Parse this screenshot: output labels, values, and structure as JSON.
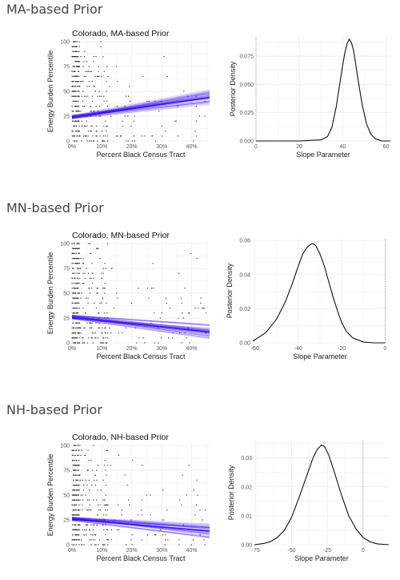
{
  "sections": [
    {
      "heading": "MA-based Prior"
    },
    {
      "heading": "MN-based Prior"
    },
    {
      "heading": "NH-based Prior"
    }
  ],
  "colors": {
    "band": "#3a10f0",
    "points": "#333333",
    "density": "#111111",
    "zero_line": "#888888"
  },
  "chart_data": [
    {
      "type": "scatter",
      "title": "Colorado, MA-based Prior",
      "xlabel": "Percent Black Census Tract",
      "ylabel": "Energy Burden Percentile",
      "xlim": [
        0,
        0.46
      ],
      "ylim": [
        0,
        100
      ],
      "xticks": [
        0,
        0.1,
        0.2,
        0.3,
        0.4
      ],
      "xtick_labels": [
        "0%",
        "10%",
        "20%",
        "30%",
        "40%"
      ],
      "yticks": [
        0,
        25,
        50,
        75,
        100
      ],
      "ytick_labels": [
        "0",
        "25",
        "50",
        "75",
        "100"
      ],
      "fit_line": {
        "intercept": 24,
        "slope": 43
      }
    },
    {
      "type": "line",
      "xlabel": "Slope Parameter",
      "ylabel": "Posterior Density",
      "xlim": [
        0,
        62
      ],
      "ylim": [
        0,
        0.092
      ],
      "xticks": [
        0,
        20,
        40,
        60
      ],
      "xtick_labels": [
        "0",
        "20",
        "40",
        "60"
      ],
      "yticks": [
        0,
        0.025,
        0.05,
        0.075
      ],
      "ytick_labels": [
        "0.000",
        "0.025",
        "0.050",
        "0.075"
      ],
      "zero_line": 0,
      "x": [
        0,
        20,
        30,
        33,
        35,
        37,
        39,
        40,
        41,
        42,
        43,
        44,
        45,
        46,
        47,
        49,
        51,
        53,
        55,
        58,
        62
      ],
      "y": [
        0,
        0,
        0.001,
        0.004,
        0.012,
        0.03,
        0.055,
        0.067,
        0.078,
        0.086,
        0.09,
        0.087,
        0.08,
        0.068,
        0.055,
        0.032,
        0.015,
        0.006,
        0.002,
        0,
        0
      ]
    },
    {
      "type": "scatter",
      "title": "Colorado, MN-based Prior",
      "xlabel": "Percent Black Census Tract",
      "ylabel": "Energy Burden Percentile",
      "xlim": [
        0,
        0.46
      ],
      "ylim": [
        0,
        100
      ],
      "xticks": [
        0,
        0.1,
        0.2,
        0.3,
        0.4
      ],
      "xtick_labels": [
        "0%",
        "10%",
        "20%",
        "30%",
        "40%"
      ],
      "yticks": [
        0,
        25,
        50,
        75,
        100
      ],
      "ytick_labels": [
        "0",
        "25",
        "50",
        "75",
        "100"
      ],
      "fit_line": {
        "intercept": 26,
        "slope": -33
      }
    },
    {
      "type": "line",
      "xlabel": "Slope Parameter",
      "ylabel": "Posterior Density",
      "xlim": [
        -61,
        1
      ],
      "ylim": [
        0,
        0.061
      ],
      "xticks": [
        -60,
        -40,
        -20,
        0
      ],
      "xtick_labels": [
        "-60",
        "-40",
        "-20",
        "0"
      ],
      "yticks": [
        0,
        0.02,
        0.04,
        0.06
      ],
      "ytick_labels": [
        "0.00",
        "0.02",
        "0.04",
        "0.06"
      ],
      "zero_line": 0,
      "x": [
        -61,
        -55,
        -50,
        -46,
        -43,
        -40,
        -38,
        -36,
        -34,
        -33,
        -32,
        -30,
        -28,
        -26,
        -24,
        -22,
        -20,
        -18,
        -15,
        -10,
        -5,
        0
      ],
      "y": [
        0.001,
        0.006,
        0.014,
        0.024,
        0.034,
        0.045,
        0.052,
        0.056,
        0.058,
        0.058,
        0.057,
        0.052,
        0.045,
        0.036,
        0.027,
        0.019,
        0.012,
        0.007,
        0.003,
        0.0005,
        0,
        0
      ]
    },
    {
      "type": "scatter",
      "title": "Colorado, NH-based Prior",
      "xlabel": "Percent Black Census Tract",
      "ylabel": "Energy Burden Percentile",
      "xlim": [
        0,
        0.46
      ],
      "ylim": [
        0,
        100
      ],
      "xticks": [
        0,
        0.1,
        0.2,
        0.3,
        0.4
      ],
      "xtick_labels": [
        "0%",
        "10%",
        "20%",
        "30%",
        "40%"
      ],
      "yticks": [
        0,
        25,
        50,
        75,
        100
      ],
      "ytick_labels": [
        "0",
        "25",
        "50",
        "75",
        "100"
      ],
      "fit_line": {
        "intercept": 26,
        "slope": -27
      }
    },
    {
      "type": "line",
      "xlabel": "Slope Parameter",
      "ylabel": "Posterior Density",
      "xlim": [
        -76,
        18
      ],
      "ylim": [
        0,
        0.036
      ],
      "xticks": [
        -75,
        -50,
        -25,
        0
      ],
      "xtick_labels": [
        "-75",
        "-50",
        "-25",
        "0"
      ],
      "yticks": [
        0,
        0.01,
        0.02,
        0.03
      ],
      "ytick_labels": [
        "0.00",
        "0.01",
        "0.02",
        "0.03"
      ],
      "zero_line": 0,
      "x": [
        -76,
        -70,
        -65,
        -60,
        -55,
        -50,
        -45,
        -40,
        -35,
        -32,
        -29,
        -27,
        -24,
        -20,
        -15,
        -10,
        -5,
        0,
        5,
        10,
        18
      ],
      "y": [
        0,
        0.0004,
        0.001,
        0.0025,
        0.005,
        0.0095,
        0.016,
        0.023,
        0.03,
        0.033,
        0.0345,
        0.034,
        0.031,
        0.025,
        0.017,
        0.01,
        0.0055,
        0.0025,
        0.001,
        0.0003,
        0
      ]
    }
  ]
}
